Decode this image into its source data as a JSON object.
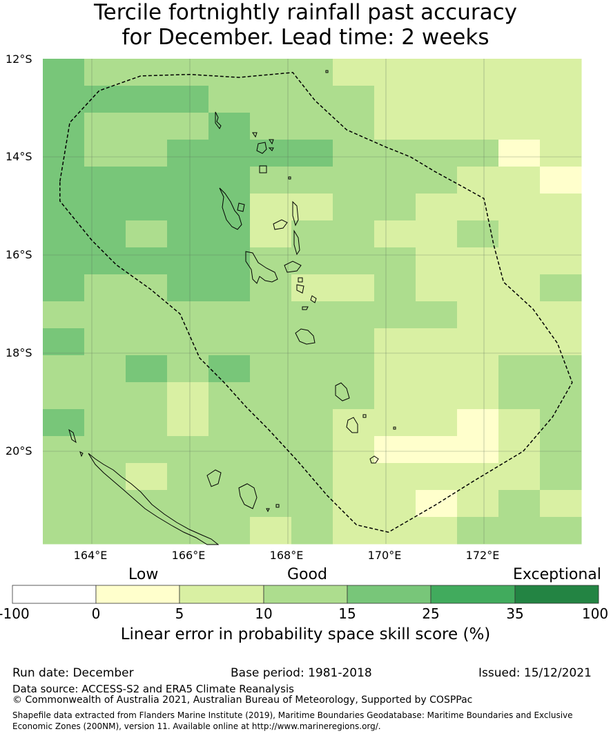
{
  "title": {
    "line1": "Tercile fortnightly rainfall past accuracy",
    "line2": "for December. Lead time: 2 weeks"
  },
  "map": {
    "lat_labels": [
      "12°S",
      "14°S",
      "16°S",
      "18°S",
      "20°S"
    ],
    "lon_labels": [
      "164°E",
      "166°E",
      "168°E",
      "170°E",
      "172°E"
    ],
    "lon_range": [
      163,
      174
    ],
    "lat_range": [
      -21.9,
      -12.0
    ],
    "grid_values": [
      [
        4,
        3,
        3,
        3,
        3,
        3,
        3,
        2,
        2,
        2,
        2,
        2,
        2
      ],
      [
        4,
        4,
        4,
        4,
        3,
        3,
        3,
        3,
        2,
        2,
        2,
        2,
        2
      ],
      [
        4,
        3,
        3,
        3,
        4,
        3,
        3,
        3,
        2,
        2,
        2,
        2,
        2
      ],
      [
        4,
        3,
        3,
        4,
        4,
        4,
        4,
        3,
        3,
        3,
        3,
        1,
        2
      ],
      [
        4,
        4,
        4,
        4,
        4,
        3,
        3,
        3,
        3,
        3,
        2,
        2,
        1
      ],
      [
        4,
        4,
        4,
        4,
        4,
        2,
        2,
        3,
        3,
        2,
        2,
        2,
        2
      ],
      [
        4,
        4,
        3,
        4,
        4,
        2,
        3,
        3,
        2,
        2,
        3,
        2,
        2
      ],
      [
        4,
        4,
        4,
        4,
        4,
        3,
        3,
        3,
        3,
        2,
        2,
        2,
        2
      ],
      [
        4,
        3,
        3,
        4,
        4,
        3,
        2,
        2,
        3,
        2,
        2,
        2,
        3
      ],
      [
        3,
        3,
        3,
        3,
        3,
        3,
        3,
        3,
        3,
        3,
        2,
        2,
        2
      ],
      [
        4,
        3,
        3,
        3,
        3,
        3,
        3,
        3,
        2,
        2,
        2,
        2,
        2
      ],
      [
        3,
        3,
        4,
        3,
        4,
        3,
        3,
        3,
        2,
        2,
        2,
        3,
        3
      ],
      [
        3,
        3,
        3,
        2,
        3,
        3,
        3,
        3,
        2,
        2,
        2,
        3,
        3
      ],
      [
        4,
        3,
        3,
        2,
        3,
        3,
        3,
        2,
        2,
        2,
        1,
        2,
        3
      ],
      [
        3,
        3,
        3,
        3,
        3,
        3,
        3,
        2,
        1,
        1,
        1,
        2,
        3
      ],
      [
        3,
        3,
        2,
        3,
        3,
        3,
        3,
        2,
        2,
        2,
        2,
        2,
        3
      ],
      [
        3,
        3,
        3,
        3,
        3,
        3,
        3,
        2,
        2,
        1,
        2,
        3,
        2
      ],
      [
        3,
        3,
        3,
        3,
        3,
        2,
        3,
        2,
        2,
        2,
        3,
        3,
        3
      ]
    ],
    "eez_boundary": [
      [
        163.35,
        -14.5
      ],
      [
        163.55,
        -13.3
      ],
      [
        164.15,
        -12.65
      ],
      [
        165.0,
        -12.35
      ],
      [
        166.0,
        -12.32
      ],
      [
        167.0,
        -12.38
      ],
      [
        168.1,
        -12.28
      ],
      [
        168.55,
        -12.85
      ],
      [
        169.2,
        -13.45
      ],
      [
        170.0,
        -13.8
      ],
      [
        170.5,
        -14.0
      ],
      [
        171.0,
        -14.3
      ],
      [
        171.55,
        -14.6
      ],
      [
        172.0,
        -14.85
      ],
      [
        172.2,
        -15.8
      ],
      [
        172.4,
        -16.55
      ],
      [
        173.0,
        -17.1
      ],
      [
        173.5,
        -17.8
      ],
      [
        173.8,
        -18.6
      ],
      [
        173.4,
        -19.3
      ],
      [
        172.8,
        -20.0
      ],
      [
        171.8,
        -20.6
      ],
      [
        171.0,
        -21.1
      ],
      [
        170.05,
        -21.65
      ],
      [
        169.4,
        -21.5
      ],
      [
        168.8,
        -20.9
      ],
      [
        168.2,
        -20.2
      ],
      [
        167.6,
        -19.55
      ],
      [
        167.15,
        -19.1
      ],
      [
        166.7,
        -18.6
      ],
      [
        166.2,
        -18.1
      ],
      [
        165.8,
        -17.2
      ],
      [
        165.2,
        -16.7
      ],
      [
        164.5,
        -16.2
      ],
      [
        164.0,
        -15.7
      ],
      [
        163.35,
        -14.9
      ],
      [
        163.35,
        -14.5
      ]
    ],
    "eez_style": "dashed"
  },
  "colorbar": {
    "category_labels": [
      "Low",
      "Good",
      "Exceptional"
    ],
    "ticks": [
      "-100",
      "0",
      "5",
      "10",
      "15",
      "25",
      "35",
      "100"
    ],
    "colors": [
      "#ffffff",
      "#ffffcc",
      "#d9f0a3",
      "#addd8e",
      "#78c679",
      "#41ab5d",
      "#238443"
    ],
    "title": "Linear error in probability space skill score (%)"
  },
  "footer": {
    "run_date": "Run date: December",
    "base_period": "Base period: 1981-2018",
    "issued": "Issued: 15/12/2021",
    "data_source": "Data source: ACCESS-S2 and ERA5 Climate Reanalysis",
    "copyright": "© Commonwealth of Australia 2021, Australian Bureau of Meteorology, Supported by COSPPac",
    "shapefile_line1": "Shapefile data extracted from Flanders Marine Institute (2019), Maritime Boundaries Geodatabase: Maritime Boundaries and Exclusive",
    "shapefile_line2": "Economic Zones (200NM), version 11. Available online at http://www.marineregions.org/."
  }
}
